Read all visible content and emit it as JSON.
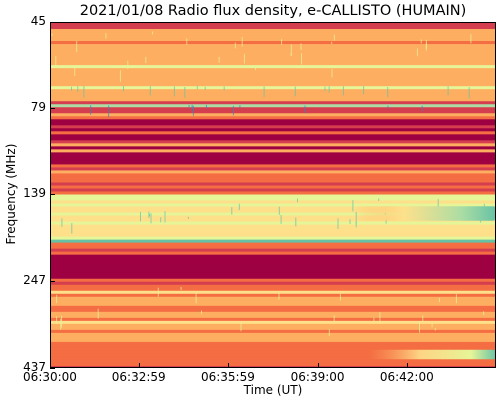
{
  "chart_data": {
    "type": "heatmap",
    "title": "2021/01/08  Radio flux density, e-CALLISTO (HUMAIN)",
    "xlabel": "Time (UT)",
    "ylabel": "Frequency (MHz)",
    "x_ticks": [
      "06:30:00",
      "06:32:59",
      "06:35:59",
      "06:39:00",
      "06:42:00"
    ],
    "x_tick_seconds": [
      0,
      179,
      359,
      540,
      720
    ],
    "x_range_seconds": [
      0,
      900
    ],
    "y_ticks": [
      "45",
      "79",
      "139",
      "247",
      "437"
    ],
    "y_tick_mhz": [
      45,
      79,
      139,
      247,
      437
    ],
    "y_range_mhz": [
      45,
      437
    ],
    "y_scale": "log",
    "y_inverted": true,
    "colormap": [
      "#9e0142",
      "#d53e4f",
      "#f46d43",
      "#fdae61",
      "#fee08b",
      "#e6f598",
      "#abdda4",
      "#66c2a5",
      "#3288bd"
    ],
    "features": [
      {
        "name": "",
        "f_low_mhz": 47,
        "f_high_mhz": 75,
        "level": 0.35
      },
      {
        "name": "",
        "f_low_mhz": 68,
        "f_high_mhz": 69,
        "level": 0.6
      },
      {
        "name": "",
        "f_low_mhz": 77,
        "f_high_mhz": 78,
        "level": 0.75
      },
      {
        "name": "",
        "f_low_mhz": 84,
        "f_high_mhz": 120,
        "level": 0.02
      },
      {
        "name": "",
        "f_low_mhz": 140,
        "f_high_mhz": 190,
        "level": 0.55
      },
      {
        "name": "",
        "f_low_mhz": 204,
        "f_high_mhz": 240,
        "level": 0.02
      },
      {
        "name": "",
        "f_low_mhz": 252,
        "f_high_mhz": 420,
        "level": 0.3
      }
    ],
    "bursts": [
      {
        "t_start_seconds": 610,
        "t_end_seconds": 900,
        "f_low_mhz": 150,
        "f_high_mhz": 165,
        "peak_level": 0.95
      },
      {
        "t_start_seconds": 640,
        "t_end_seconds": 900,
        "f_low_mhz": 385,
        "f_high_mhz": 410,
        "peak_level": 0.9
      }
    ]
  }
}
